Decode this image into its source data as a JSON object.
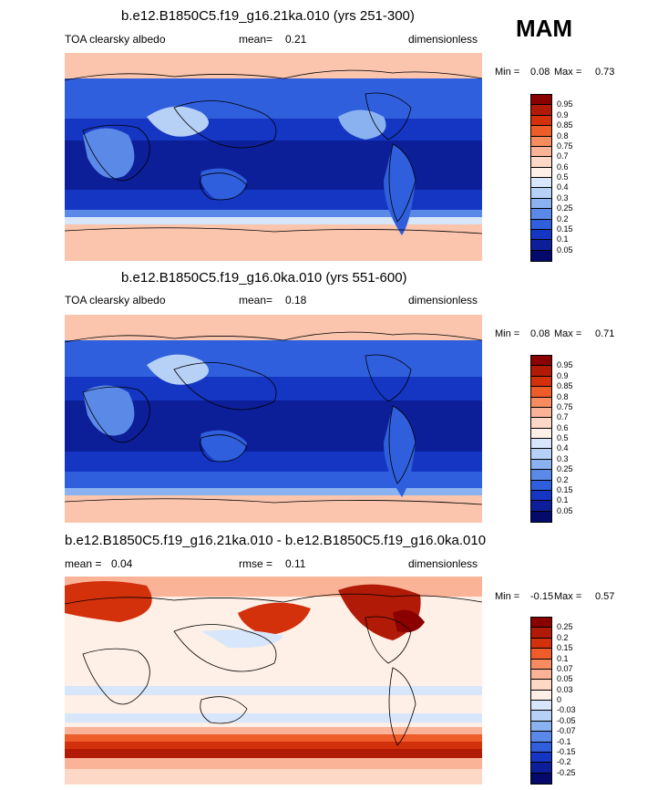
{
  "season": "MAM",
  "panels": [
    {
      "title": "b.e12.B1850C5.f19_g16.21ka.010 (yrs 251-300)",
      "left_label": "TOA clearsky albedo",
      "mean_label": "mean=",
      "mean_value": "0.21",
      "units": "dimensionless",
      "min_label": "Min =",
      "min_value": "0.08",
      "max_label": "Max =",
      "max_value": "0.73",
      "colorbar": [
        "0.95",
        "0.9",
        "0.85",
        "0.8",
        "0.75",
        "0.7",
        "0.6",
        "0.5",
        "0.4",
        "0.3",
        "0.25",
        "0.2",
        "0.15",
        "0.1",
        "0.05"
      ],
      "colors": [
        "#8b0000",
        "#b01a06",
        "#d3300c",
        "#ee5c2a",
        "#f88b60",
        "#fbb398",
        "#fdd8c6",
        "#fef0e6",
        "#d8e6fb",
        "#b7d0f6",
        "#8ab1f0",
        "#5a89e8",
        "#2f5fdc",
        "#1436c2",
        "#0c1f98",
        "#040a6b"
      ]
    },
    {
      "title": "b.e12.B1850C5.f19_g16.0ka.010 (yrs 551-600)",
      "left_label": "TOA clearsky albedo",
      "mean_label": "mean=",
      "mean_value": "0.18",
      "units": "dimensionless",
      "min_label": "Min =",
      "min_value": "0.08",
      "max_label": "Max =",
      "max_value": "0.71",
      "colorbar": [
        "0.95",
        "0.9",
        "0.85",
        "0.8",
        "0.75",
        "0.7",
        "0.6",
        "0.5",
        "0.4",
        "0.3",
        "0.25",
        "0.2",
        "0.15",
        "0.1",
        "0.05"
      ],
      "colors": [
        "#8b0000",
        "#b01a06",
        "#d3300c",
        "#ee5c2a",
        "#f88b60",
        "#fbb398",
        "#fdd8c6",
        "#fef0e6",
        "#d8e6fb",
        "#b7d0f6",
        "#8ab1f0",
        "#5a89e8",
        "#2f5fdc",
        "#1436c2",
        "#0c1f98",
        "#040a6b"
      ]
    },
    {
      "title": "b.e12.B1850C5.f19_g16.21ka.010 - b.e12.B1850C5.f19_g16.0ka.010",
      "left_label": "mean =",
      "mean_label": "",
      "mean_value": "0.04",
      "rmse_label": "rmse =",
      "rmse_value": "0.11",
      "units": "dimensionless",
      "min_label": "Min =",
      "min_value": "-0.15",
      "max_label": "Max =",
      "max_value": "0.57",
      "colorbar": [
        "0.25",
        "0.2",
        "0.15",
        "0.1",
        "0.07",
        "0.05",
        "0.03",
        "0",
        "-0.03",
        "-0.05",
        "-0.07",
        "-0.1",
        "-0.15",
        "-0.2",
        "-0.25"
      ],
      "colors": [
        "#8b0000",
        "#b01a06",
        "#d3300c",
        "#ee5c2a",
        "#f88b60",
        "#fbb398",
        "#fdd8c6",
        "#fef0e6",
        "#d8e6fb",
        "#b7d0f6",
        "#8ab1f0",
        "#5a89e8",
        "#2f5fdc",
        "#1436c2",
        "#0c1f98",
        "#040a6b"
      ]
    }
  ],
  "chart_data": [
    {
      "type": "heatmap",
      "title": "b.e12.B1850C5.f19_g16.21ka.010 (yrs 251-300)",
      "variable": "TOA clearsky albedo",
      "units": "dimensionless",
      "mean": 0.21,
      "min": 0.08,
      "max": 0.73,
      "levels": [
        0.05,
        0.1,
        0.15,
        0.2,
        0.25,
        0.3,
        0.4,
        0.5,
        0.6,
        0.7,
        0.75,
        0.8,
        0.85,
        0.9,
        0.95
      ]
    },
    {
      "type": "heatmap",
      "title": "b.e12.B1850C5.f19_g16.0ka.010 (yrs 551-600)",
      "variable": "TOA clearsky albedo",
      "units": "dimensionless",
      "mean": 0.18,
      "min": 0.08,
      "max": 0.71,
      "levels": [
        0.05,
        0.1,
        0.15,
        0.2,
        0.25,
        0.3,
        0.4,
        0.5,
        0.6,
        0.7,
        0.75,
        0.8,
        0.85,
        0.9,
        0.95
      ]
    },
    {
      "type": "heatmap",
      "title": "b.e12.B1850C5.f19_g16.21ka.010 - b.e12.B1850C5.f19_g16.0ka.010",
      "units": "dimensionless",
      "mean": 0.04,
      "rmse": 0.11,
      "min": -0.15,
      "max": 0.57,
      "levels": [
        -0.25,
        -0.2,
        -0.15,
        -0.1,
        -0.07,
        -0.05,
        -0.03,
        0,
        0.03,
        0.05,
        0.07,
        0.1,
        0.15,
        0.2,
        0.25
      ]
    }
  ]
}
